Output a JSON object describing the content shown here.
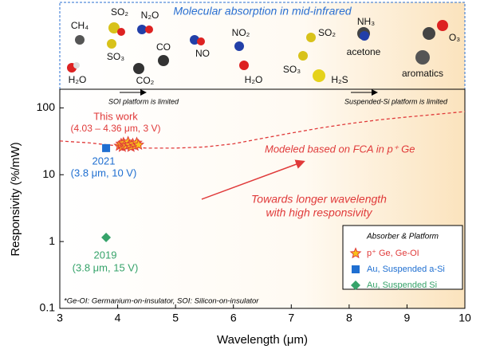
{
  "inset": {
    "title": "Molecular absorption in mid-infrared",
    "labels": [
      "CH₄",
      "SO₂",
      "N₂O",
      "SO₃",
      "CO",
      "H₂O",
      "CO₂",
      "NO",
      "NO₂",
      "H₂O",
      "SO₂",
      "SO₃",
      "H₂S",
      "acetone",
      "NH₃",
      "O₃",
      "aromatics"
    ]
  },
  "chart_data": {
    "type": "scatter",
    "log_y": true,
    "x_label": "Wavelength (μm)",
    "y_label": "Responsivity (%/mW)",
    "xlim": [
      3,
      10
    ],
    "xticks": [
      3,
      4,
      5,
      6,
      7,
      8,
      9,
      10
    ],
    "ylim": [
      0.1,
      190
    ],
    "yticks": [
      0.1,
      1,
      10,
      100
    ],
    "series": [
      {
        "name": "p⁺ Ge, Ge-OI",
        "color": "#f7c21a",
        "marker": "star",
        "x": [
          4.03,
          4.06,
          4.08,
          4.1,
          4.12,
          4.15,
          4.18,
          4.2,
          4.23,
          4.26,
          4.3,
          4.33,
          4.36
        ],
        "values": [
          27,
          29,
          26,
          30,
          28,
          27,
          31,
          28,
          26,
          29,
          27,
          30,
          28
        ]
      },
      {
        "name": "Au, Suspended a-Si",
        "color": "#1f6fd1",
        "marker": "square",
        "x": [
          3.8
        ],
        "values": [
          25
        ]
      },
      {
        "name": "Au, Suspended Si",
        "color": "#36a36a",
        "marker": "diamond",
        "x": [
          3.8
        ],
        "values": [
          1.15
        ]
      }
    ],
    "model": {
      "label": "Modeled based on FCA in p⁺ Ge",
      "color": "#e03a3a",
      "x": [
        3,
        3.5,
        4,
        4.5,
        5,
        5.5,
        6,
        6.5,
        7,
        7.5,
        8,
        8.5,
        9,
        9.5,
        10
      ],
      "values": [
        32,
        30,
        27,
        25,
        25,
        26,
        29,
        35,
        42,
        50,
        58,
        66,
        73,
        80,
        88
      ]
    },
    "legend_title": "Absorber & Platform",
    "annotations": [
      "This work",
      "(4.03 – 4.36 μm, 3 V)",
      "2021",
      "(3.8 μm, 10 V)",
      "2019",
      "(3.8 μm, 15 V)",
      "Towards longer wavelength",
      "with high responsivity",
      "SOI platform is limited",
      "Suspended-Si platform is limited",
      "*Ge-OI: Germanium-on-insulator, SOI: Silicon-on-insulator"
    ]
  }
}
